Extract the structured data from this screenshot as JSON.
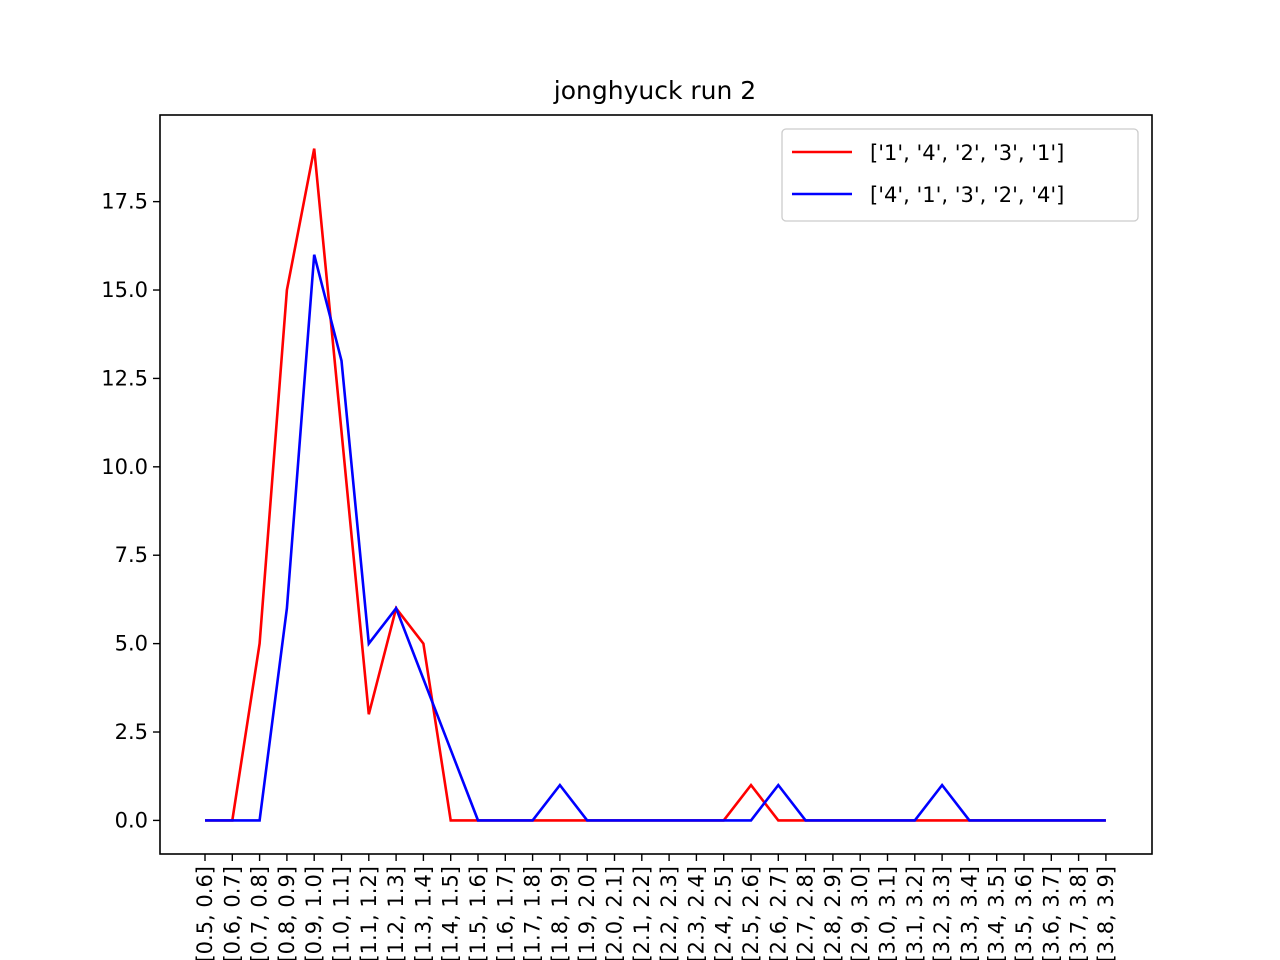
{
  "chart_data": {
    "type": "line",
    "title": "jonghyuck run 2",
    "xlabel": "",
    "ylabel": "",
    "categories": [
      "[0.5, 0.6]",
      "[0.6, 0.7]",
      "[0.7, 0.8]",
      "[0.8, 0.9]",
      "[0.9, 1.0]",
      "[1.0, 1.1]",
      "[1.1, 1.2]",
      "[1.2, 1.3]",
      "[1.3, 1.4]",
      "[1.4, 1.5]",
      "[1.5, 1.6]",
      "[1.6, 1.7]",
      "[1.7, 1.8]",
      "[1.8, 1.9]",
      "[1.9, 2.0]",
      "[2.0, 2.1]",
      "[2.1, 2.2]",
      "[2.2, 2.3]",
      "[2.3, 2.4]",
      "[2.4, 2.5]",
      "[2.5, 2.6]",
      "[2.6, 2.7]",
      "[2.7, 2.8]",
      "[2.8, 2.9]",
      "[2.9, 3.0]",
      "[3.0, 3.1]",
      "[3.1, 3.2]",
      "[3.2, 3.3]",
      "[3.3, 3.4]",
      "[3.4, 3.5]",
      "[3.5, 3.6]",
      "[3.6, 3.7]",
      "[3.7, 3.8]",
      "[3.8, 3.9]"
    ],
    "series": [
      {
        "name": "['1', '4', '2', '3', '1']",
        "color": "#ff0000",
        "values": [
          0,
          0,
          5,
          15,
          19,
          11,
          3,
          6,
          5,
          0,
          0,
          0,
          0,
          0,
          0,
          0,
          0,
          0,
          0,
          0,
          1,
          0,
          0,
          0,
          0,
          0,
          0,
          0,
          0,
          0,
          0,
          0,
          0,
          0
        ]
      },
      {
        "name": "['4', '1', '3', '2', '4']",
        "color": "#0000ff",
        "values": [
          0,
          0,
          0,
          6,
          16,
          13,
          5,
          6,
          4,
          2,
          0,
          0,
          0,
          1,
          0,
          0,
          0,
          0,
          0,
          0,
          0,
          1,
          0,
          0,
          0,
          0,
          0,
          1,
          0,
          0,
          0,
          0,
          0,
          0
        ]
      }
    ],
    "ylim": [
      -0.95,
      19.95
    ],
    "yticks": [
      "0.0",
      "2.5",
      "5.0",
      "7.5",
      "10.0",
      "12.5",
      "15.0",
      "17.5"
    ],
    "grid": false,
    "legend_position": "top-right"
  }
}
